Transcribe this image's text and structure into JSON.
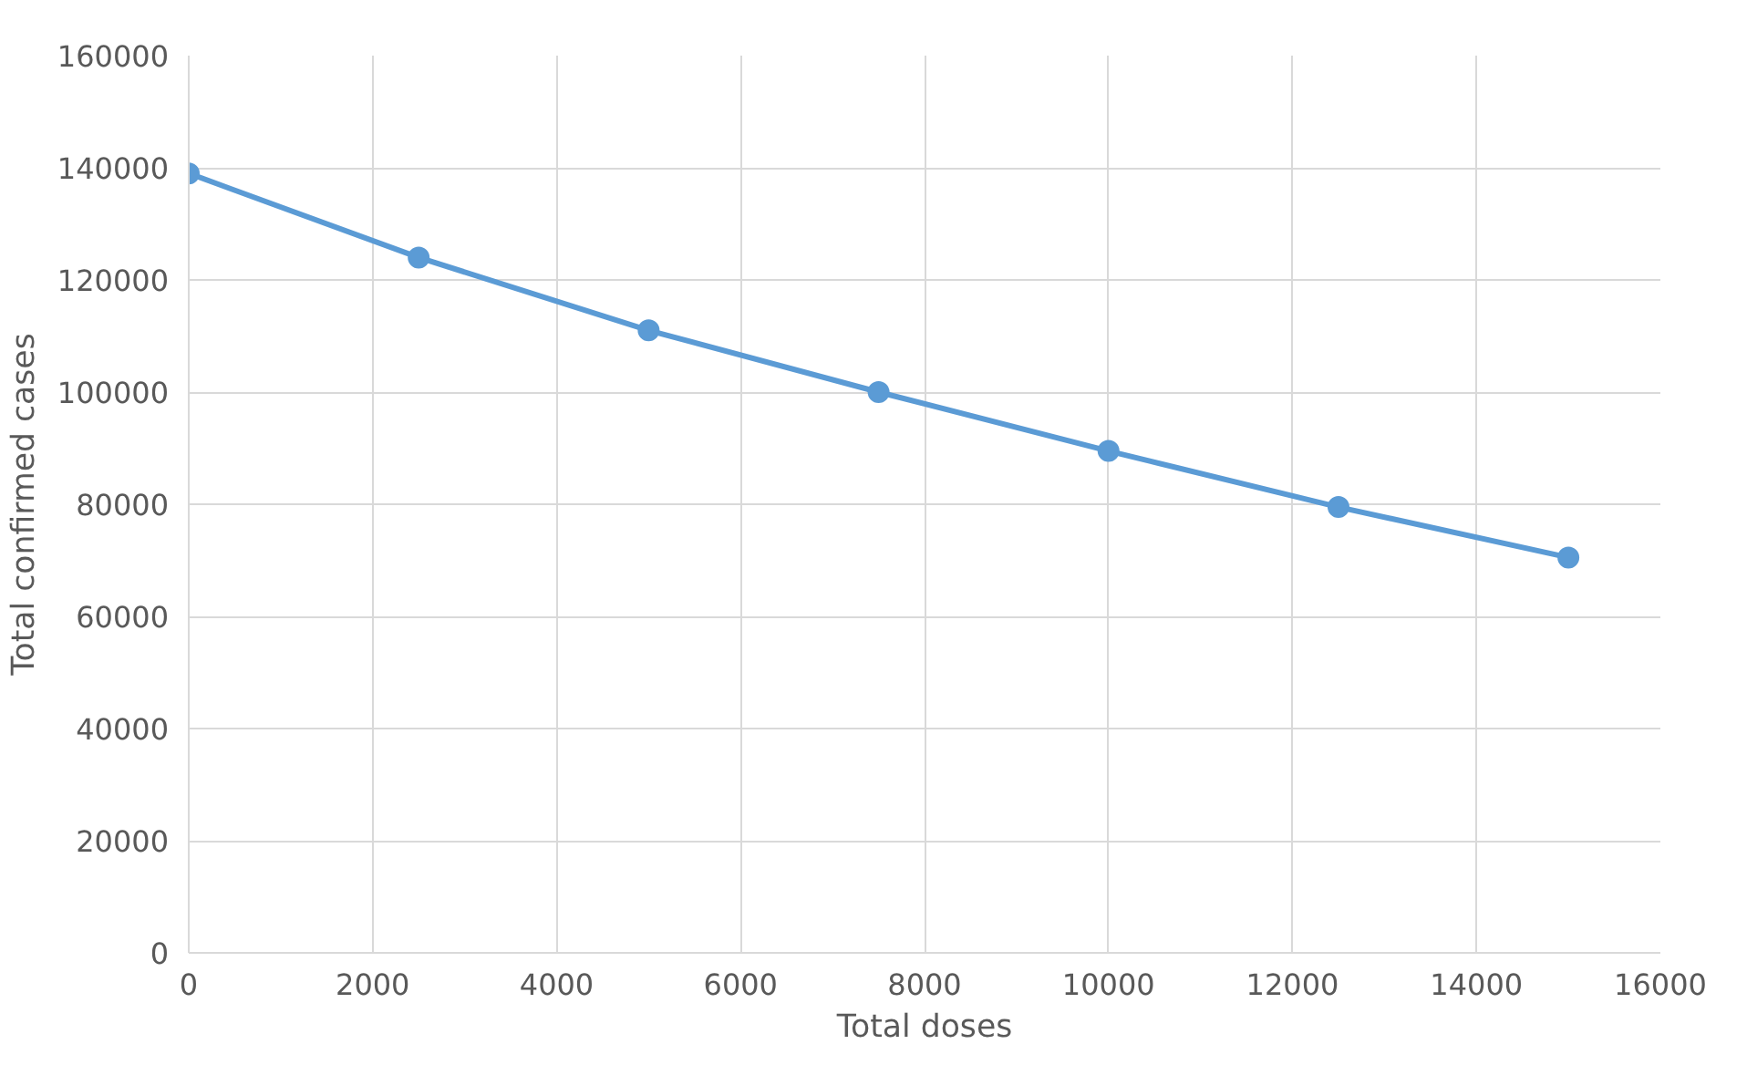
{
  "chart_data": {
    "type": "line",
    "xlabel": "Total doses",
    "ylabel": "Total confirmed cases",
    "series": [
      {
        "color": "#5b9bd5",
        "x": [
          0,
          2500,
          5000,
          7500,
          10000,
          12500,
          15000
        ],
        "values": [
          139000,
          124000,
          111000,
          100000,
          89500,
          79500,
          70500
        ]
      }
    ],
    "xlim": [
      0,
      16000
    ],
    "xticks": [
      0,
      2000,
      4000,
      6000,
      8000,
      10000,
      12000,
      14000,
      16000
    ],
    "ylim": [
      0,
      160000
    ],
    "yticks": [
      0,
      20000,
      40000,
      60000,
      80000,
      100000,
      120000,
      140000,
      160000
    ],
    "grid": true,
    "marker": "circle",
    "line_style": "solid"
  }
}
